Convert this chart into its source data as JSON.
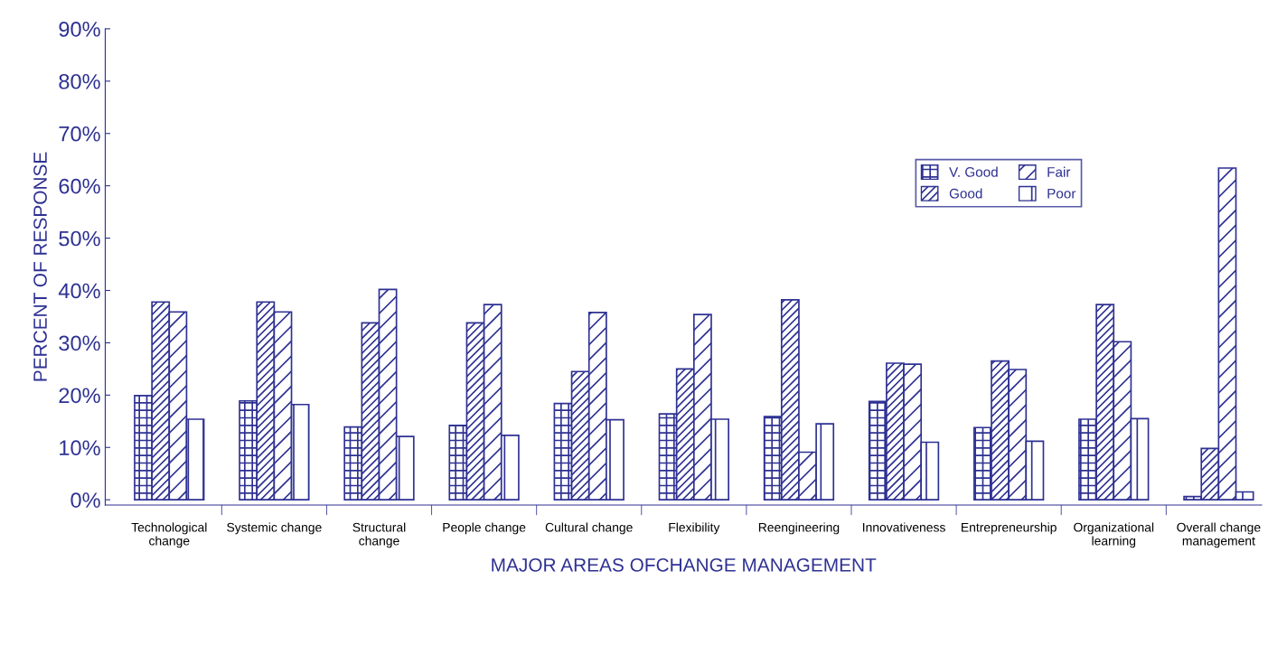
{
  "chart_data": {
    "type": "bar",
    "xlabel": "MAJOR AREAS OFCHANGE MANAGEMENT",
    "ylabel": "PERCENT OF RESPONSE",
    "categories": [
      "Technological\nchange",
      "Systemic change",
      "Structural\nchange",
      "People change",
      "Cultural change",
      "Flexibility",
      "Reengineering",
      "Innovativeness",
      "Entrepreneurship",
      "Organizational\nlearning",
      "Overall change\nmanagement"
    ],
    "series": [
      {
        "name": "V. Good",
        "color": "#2e3192",
        "values": [
          19.9,
          18.9,
          13.9,
          14.2,
          18.4,
          16.4,
          15.9,
          18.8,
          13.8,
          15.4,
          0.6
        ]
      },
      {
        "name": "Good",
        "color": "#2e3192",
        "values": [
          37.8,
          37.8,
          33.8,
          33.8,
          24.5,
          25.0,
          38.2,
          26.1,
          26.5,
          37.3,
          9.8
        ]
      },
      {
        "name": "Fair",
        "color": "#2e3192",
        "values": [
          35.9,
          35.9,
          40.2,
          37.3,
          35.8,
          35.4,
          9.1,
          25.9,
          24.9,
          30.2,
          63.4
        ]
      },
      {
        "name": "Poor",
        "color": "#2e3192",
        "values": [
          15.4,
          18.2,
          12.1,
          12.3,
          15.3,
          15.4,
          14.5,
          11.0,
          11.2,
          15.5,
          1.5
        ]
      }
    ],
    "ylim": [
      -1,
      90
    ],
    "yticks": [
      {
        "value": 0,
        "label": "0%"
      },
      {
        "value": 10,
        "label": "10%"
      },
      {
        "value": 20,
        "label": "20%"
      },
      {
        "value": 30,
        "label": "30%"
      },
      {
        "value": 40,
        "label": "40%"
      },
      {
        "value": 50,
        "label": "50%"
      },
      {
        "value": 60,
        "label": "60%"
      },
      {
        "value": 70,
        "label": "70%"
      },
      {
        "value": 80,
        "label": "80%"
      },
      {
        "value": 90,
        "label": "90%"
      }
    ],
    "grid": false,
    "legend": "top right"
  }
}
